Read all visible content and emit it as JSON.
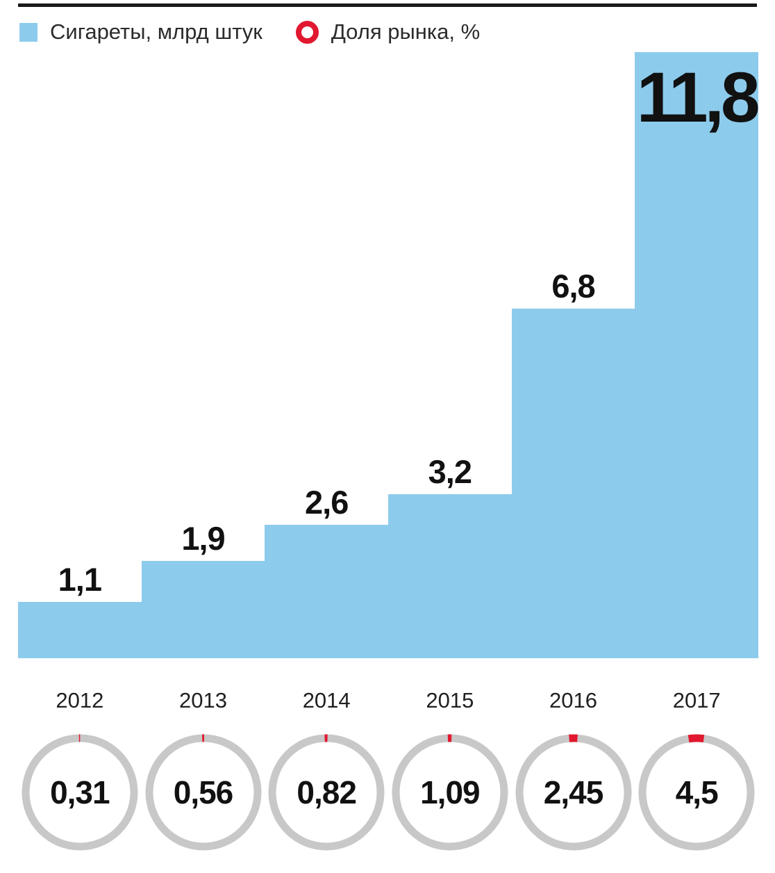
{
  "colors": {
    "bar_blue": "#8dcbec",
    "share_red": "#e1182f",
    "ring_gray": "#c8c8c8",
    "rule_black": "#1a1a1a",
    "text_black": "#111111"
  },
  "legend": [
    {
      "label": "Сигареты, млрд штук",
      "marker": "blue-square"
    },
    {
      "label": "Доля рынка, %",
      "marker": "red-ring"
    }
  ],
  "chart_data": {
    "type": "bar",
    "subtype": "step-staircase with donut gauges",
    "categories": [
      "2012",
      "2013",
      "2014",
      "2015",
      "2016",
      "2017"
    ],
    "series": [
      {
        "name": "Сигареты, млрд штук",
        "values": [
          1.1,
          1.9,
          2.6,
          3.2,
          6.8,
          11.8
        ],
        "labels": [
          "1,1",
          "1,9",
          "2,6",
          "3,2",
          "6,8",
          "11,8"
        ]
      },
      {
        "name": "Доля рынка, %",
        "values": [
          0.31,
          0.56,
          0.82,
          1.09,
          2.45,
          4.5
        ],
        "labels": [
          "0,31",
          "0,56",
          "0,82",
          "1,09",
          "2,45",
          "4,5"
        ]
      }
    ],
    "ylim": [
      0,
      11.8
    ],
    "grid": false,
    "legend_position": "top-left",
    "bar_gap": 0,
    "donut_unit": "percent of full circle"
  }
}
